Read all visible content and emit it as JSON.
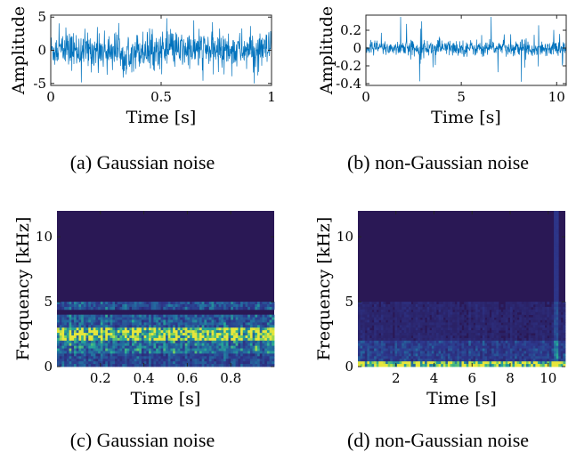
{
  "colors": {
    "waveform": "#0072bd",
    "axis": "#262626",
    "spec_bg": "#2a1855"
  },
  "captions": {
    "a": "(a) Gaussian noise",
    "b": "(b) non-Gaussian noise",
    "c": "(c) Gaussian noise",
    "d": "(d) non-Gaussian noise"
  },
  "chart_data": [
    {
      "id": "a",
      "type": "line",
      "xlabel": "Time [s]",
      "ylabel": "Amplitude",
      "xlim": [
        0,
        1
      ],
      "ylim": [
        -5.3,
        5.3
      ],
      "xticks": [
        0,
        0.5,
        1
      ],
      "xticklabels": [
        "0",
        "0.5",
        "1"
      ],
      "yticks": [
        -5,
        0,
        5
      ],
      "yticklabels": [
        "-5",
        "0",
        "5"
      ],
      "series": [
        {
          "values": "dense noise waveform",
          "envelope": [
            -2.5,
            2.5
          ],
          "peaks": [
            -5,
            5
          ]
        }
      ]
    },
    {
      "id": "b",
      "type": "line",
      "xlabel": "Time [s]",
      "ylabel": "Amplitude",
      "xlim": [
        0,
        10.5
      ],
      "ylim": [
        -0.42,
        0.37
      ],
      "xticks": [
        0,
        5,
        10
      ],
      "xticklabels": [
        "0",
        "5",
        "10"
      ],
      "yticks": [
        -0.4,
        -0.2,
        0,
        0.2
      ],
      "yticklabels": [
        "-0.4",
        "-0.2",
        "0",
        "0.2"
      ],
      "series": [
        {
          "values": "dense impulsive noise waveform",
          "envelope": [
            -0.08,
            0.08
          ],
          "peaks": [
            -0.4,
            0.35
          ]
        }
      ]
    },
    {
      "id": "c",
      "type": "heatmap",
      "xlabel": "Time [s]",
      "ylabel": "Frequency [kHz]",
      "xlim": [
        0,
        1
      ],
      "ylim": [
        0,
        12
      ],
      "xticks": [
        0.2,
        0.4,
        0.6,
        0.8
      ],
      "xticklabels": [
        "0.2",
        "0.4",
        "0.6",
        "0.8"
      ],
      "yticks": [
        0,
        5,
        10
      ],
      "yticklabels": [
        "0",
        "5",
        "10"
      ],
      "energy_bands_khz": [
        [
          2.0,
          3.0,
          1.0
        ],
        [
          1.0,
          2.0,
          0.6
        ],
        [
          3.0,
          4.0,
          0.5
        ],
        [
          4.5,
          5.0,
          0.45
        ],
        [
          0.0,
          1.0,
          0.4
        ]
      ]
    },
    {
      "id": "d",
      "type": "heatmap",
      "xlabel": "Time [s]",
      "ylabel": "Frequency [kHz]",
      "xlim": [
        0,
        10.9
      ],
      "ylim": [
        0,
        12
      ],
      "xticks": [
        2,
        4,
        6,
        8,
        10
      ],
      "xticklabels": [
        "2",
        "4",
        "6",
        "8",
        "10"
      ],
      "yticks": [
        0,
        5,
        10
      ],
      "yticklabels": [
        "0",
        "5",
        "10"
      ],
      "energy_bands_khz": [
        [
          0.0,
          0.4,
          1.0
        ],
        [
          0.4,
          2.0,
          0.35
        ],
        [
          2.0,
          5.0,
          0.15
        ]
      ]
    }
  ]
}
